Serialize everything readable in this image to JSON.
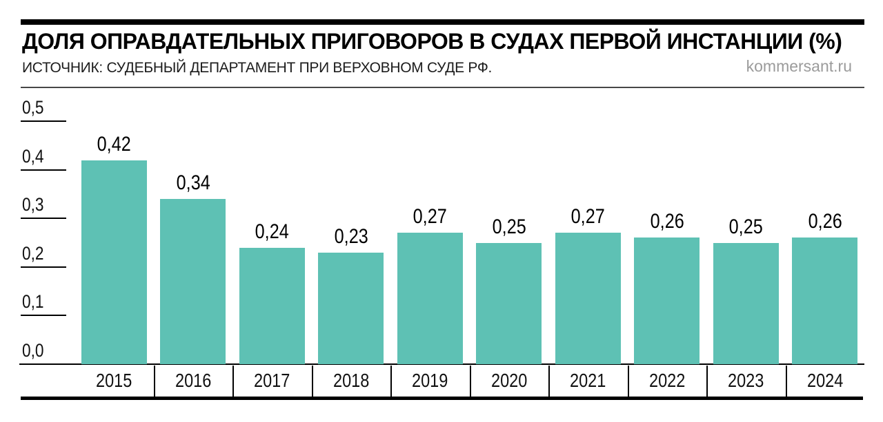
{
  "header": {
    "title": "ДОЛЯ ОПРАВДАТЕЛЬНЫХ ПРИГОВОРОВ В СУДАХ ПЕРВОЙ ИНСТАНЦИИ (%)",
    "source": "ИСТОЧНИК: СУДЕБНЫЙ ДЕПАРТАМЕНТ ПРИ ВЕРХОВНОМ СУДЕ РФ.",
    "brand": "kommersant.ru"
  },
  "colors": {
    "bar": "#5ec1b4",
    "accent_bar": "#000000",
    "axis": "#000000",
    "text": "#111111",
    "brand_text": "#9b9b9b",
    "header_rule": "#474747",
    "background": "#ffffff"
  },
  "chart_data": {
    "type": "bar",
    "title": "ДОЛЯ ОПРАВДАТЕЛЬНЫХ ПРИГОВОРОВ В СУДАХ ПЕРВОЙ ИНСТАНЦИИ (%)",
    "xlabel": "",
    "ylabel": "",
    "categories": [
      "2015",
      "2016",
      "2017",
      "2018",
      "2019",
      "2020",
      "2021",
      "2022",
      "2023",
      "2024"
    ],
    "values": [
      0.42,
      0.34,
      0.24,
      0.23,
      0.27,
      0.25,
      0.27,
      0.26,
      0.25,
      0.26
    ],
    "value_labels": [
      "0,42",
      "0,34",
      "0,24",
      "0,23",
      "0,27",
      "0,25",
      "0,27",
      "0,26",
      "0,25",
      "0,26"
    ],
    "ylim": [
      0,
      0.5
    ],
    "yticks": [
      0.0,
      0.1,
      0.2,
      0.3,
      0.4,
      0.5
    ],
    "ytick_labels": [
      "0,0",
      "0,1",
      "0,2",
      "0,3",
      "0,4",
      "0,5"
    ],
    "grid": false,
    "legend": "none",
    "decimal_separator": ","
  }
}
